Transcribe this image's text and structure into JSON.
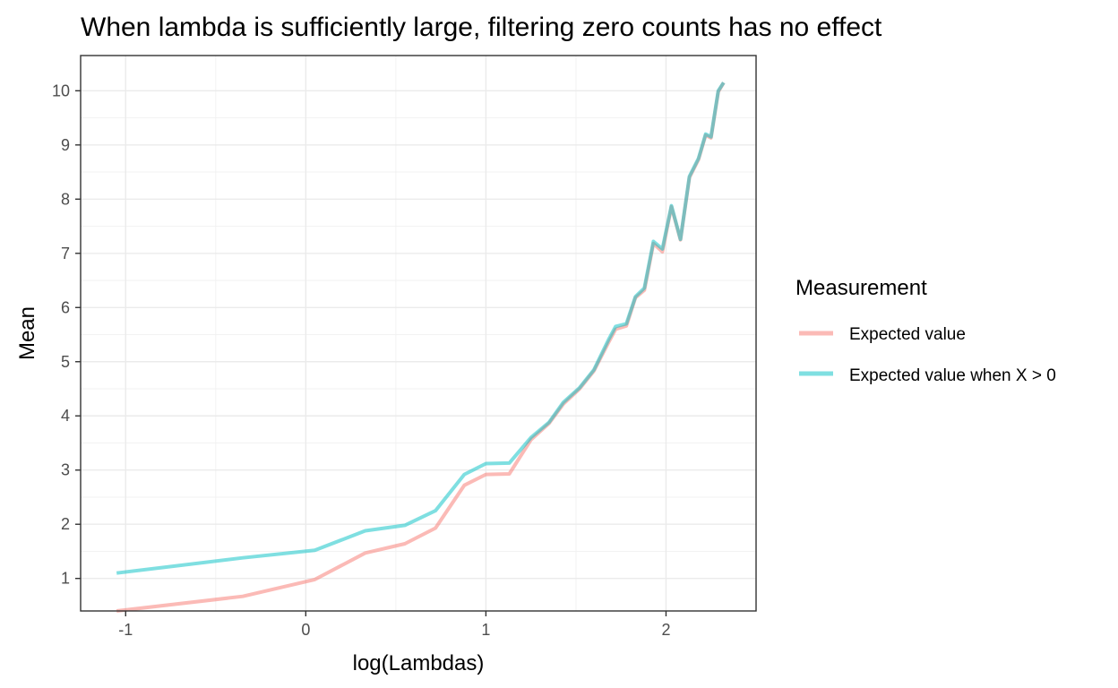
{
  "chart_data": {
    "type": "line",
    "title": "When lambda is sufficiently large, filtering zero counts has no effect",
    "xlabel": "log(Lambdas)",
    "ylabel": "Mean",
    "xlim": [
      -1.25,
      2.5
    ],
    "ylim": [
      0.4,
      10.65
    ],
    "x_ticks": [
      -1,
      0,
      1,
      2
    ],
    "y_ticks": [
      1,
      2,
      3,
      4,
      5,
      6,
      7,
      8,
      9,
      10
    ],
    "x_tick_labels": [
      "-1",
      "0",
      "1",
      "2"
    ],
    "y_tick_labels": [
      "1",
      "2",
      "3",
      "4",
      "5",
      "6",
      "7",
      "8",
      "9",
      "10"
    ],
    "grid": true,
    "legend": {
      "title": "Measurement",
      "position": "right"
    },
    "series": [
      {
        "name": "Expected value",
        "color": "#F8766D",
        "points": [
          [
            -1.05,
            0.4
          ],
          [
            -0.35,
            0.67
          ],
          [
            0.05,
            0.98
          ],
          [
            0.33,
            1.47
          ],
          [
            0.55,
            1.64
          ],
          [
            0.72,
            1.93
          ],
          [
            0.88,
            2.72
          ],
          [
            1.0,
            2.92
          ],
          [
            1.13,
            2.93
          ],
          [
            1.25,
            3.56
          ],
          [
            1.35,
            3.86
          ],
          [
            1.43,
            4.22
          ],
          [
            1.52,
            4.5
          ],
          [
            1.6,
            4.83
          ],
          [
            1.68,
            5.35
          ],
          [
            1.72,
            5.6
          ],
          [
            1.78,
            5.66
          ],
          [
            1.83,
            6.18
          ],
          [
            1.88,
            6.32
          ],
          [
            1.93,
            7.18
          ],
          [
            1.98,
            7.03
          ],
          [
            2.03,
            7.86
          ],
          [
            2.08,
            7.25
          ],
          [
            2.13,
            8.4
          ],
          [
            2.18,
            8.73
          ],
          [
            2.22,
            9.18
          ],
          [
            2.25,
            9.13
          ],
          [
            2.29,
            9.98
          ],
          [
            2.32,
            10.15
          ]
        ]
      },
      {
        "name": "Expected value when X > 0",
        "color": "#00BFC4",
        "points": [
          [
            -1.05,
            1.1
          ],
          [
            -0.35,
            1.38
          ],
          [
            0.05,
            1.52
          ],
          [
            0.33,
            1.88
          ],
          [
            0.55,
            1.98
          ],
          [
            0.72,
            2.25
          ],
          [
            0.88,
            2.92
          ],
          [
            1.0,
            3.12
          ],
          [
            1.13,
            3.13
          ],
          [
            1.25,
            3.6
          ],
          [
            1.35,
            3.88
          ],
          [
            1.43,
            4.25
          ],
          [
            1.52,
            4.52
          ],
          [
            1.6,
            4.85
          ],
          [
            1.68,
            5.4
          ],
          [
            1.72,
            5.65
          ],
          [
            1.78,
            5.7
          ],
          [
            1.83,
            6.2
          ],
          [
            1.88,
            6.36
          ],
          [
            1.93,
            7.22
          ],
          [
            1.98,
            7.08
          ],
          [
            2.03,
            7.88
          ],
          [
            2.08,
            7.26
          ],
          [
            2.13,
            8.42
          ],
          [
            2.18,
            8.75
          ],
          [
            2.22,
            9.2
          ],
          [
            2.25,
            9.15
          ],
          [
            2.29,
            10.0
          ],
          [
            2.32,
            10.15
          ]
        ]
      }
    ]
  }
}
